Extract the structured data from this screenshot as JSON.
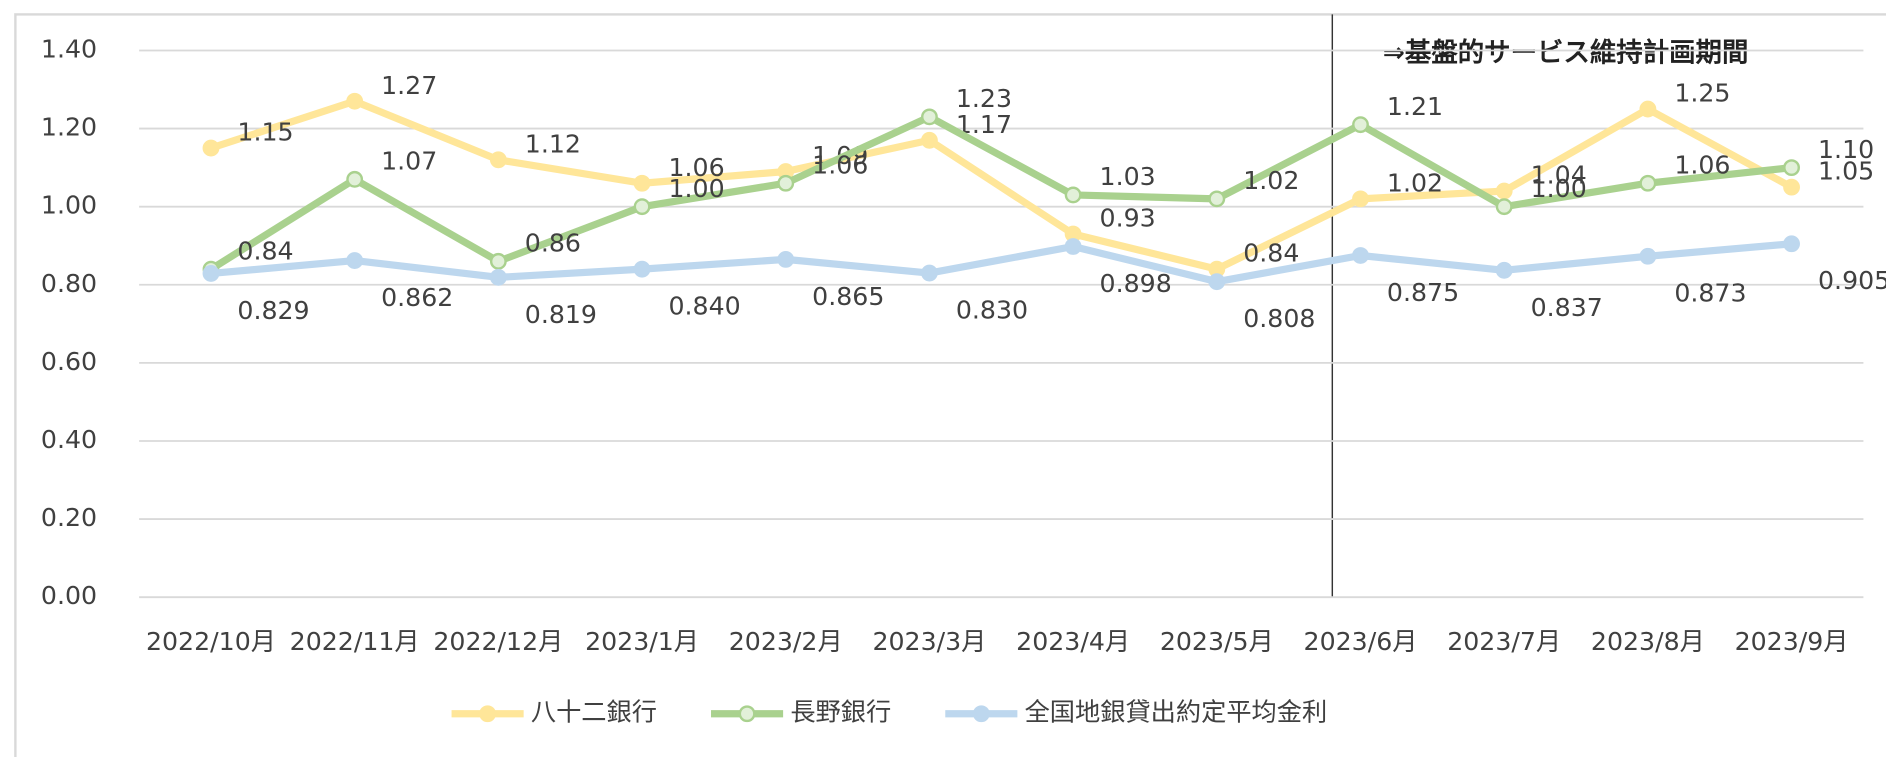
{
  "chart_data": {
    "type": "line",
    "categories": [
      "2022/10月",
      "2022/11月",
      "2022/12月",
      "2023/1月",
      "2023/2月",
      "2023/3月",
      "2023/4月",
      "2023/5月",
      "2023/6月",
      "2023/7月",
      "2023/8月",
      "2023/9月"
    ],
    "series": [
      {
        "name": "八十二銀行",
        "color": "#ffe699",
        "values": [
          1.15,
          1.27,
          1.12,
          1.06,
          1.09,
          1.17,
          0.93,
          0.84,
          1.02,
          1.04,
          1.25,
          1.05
        ],
        "value_labels": [
          "1.15",
          "1.27",
          "1.12",
          "1.06",
          "1.09",
          "1.17",
          "0.93",
          "0.84",
          "1.02",
          "1.04",
          "1.25",
          "1.05"
        ]
      },
      {
        "name": "長野銀行",
        "color": "#a9d18e",
        "values": [
          0.84,
          1.07,
          0.86,
          1.0,
          1.06,
          1.23,
          1.03,
          1.02,
          1.21,
          1.0,
          1.06,
          1.1
        ],
        "value_labels": [
          "0.84",
          "1.07",
          "0.86",
          "1.00",
          "1.06",
          "1.23",
          "1.03",
          "1.02",
          "1.21",
          "1.00",
          "1.06",
          "1.10"
        ]
      },
      {
        "name": "全国地銀貸出約定平均金利",
        "color": "#bdd7ee",
        "values": [
          0.829,
          0.862,
          0.819,
          0.84,
          0.865,
          0.83,
          0.898,
          0.808,
          0.875,
          0.837,
          0.873,
          0.905
        ],
        "value_labels": [
          "0.829",
          "0.862",
          "0.819",
          "0.840",
          "0.865",
          "0.830",
          "0.898",
          "0.808",
          "0.875",
          "0.837",
          "0.873",
          "0.905"
        ]
      }
    ],
    "ylim": [
      0,
      1.4
    ],
    "yticks": [
      {
        "value": 0,
        "label": "0.00"
      },
      {
        "value": 0.2,
        "label": "0.20"
      },
      {
        "value": 0.4,
        "label": "0.40"
      },
      {
        "value": 0.6,
        "label": "0.60"
      },
      {
        "value": 0.8,
        "label": "0.80"
      },
      {
        "value": 1.0,
        "label": "1.00"
      },
      {
        "value": 1.2,
        "label": "1.20"
      },
      {
        "value": 1.4,
        "label": "1.40"
      }
    ],
    "grid": true,
    "annotation": "⇒基盤的サービス維持計画期間",
    "legend": "bottom"
  }
}
